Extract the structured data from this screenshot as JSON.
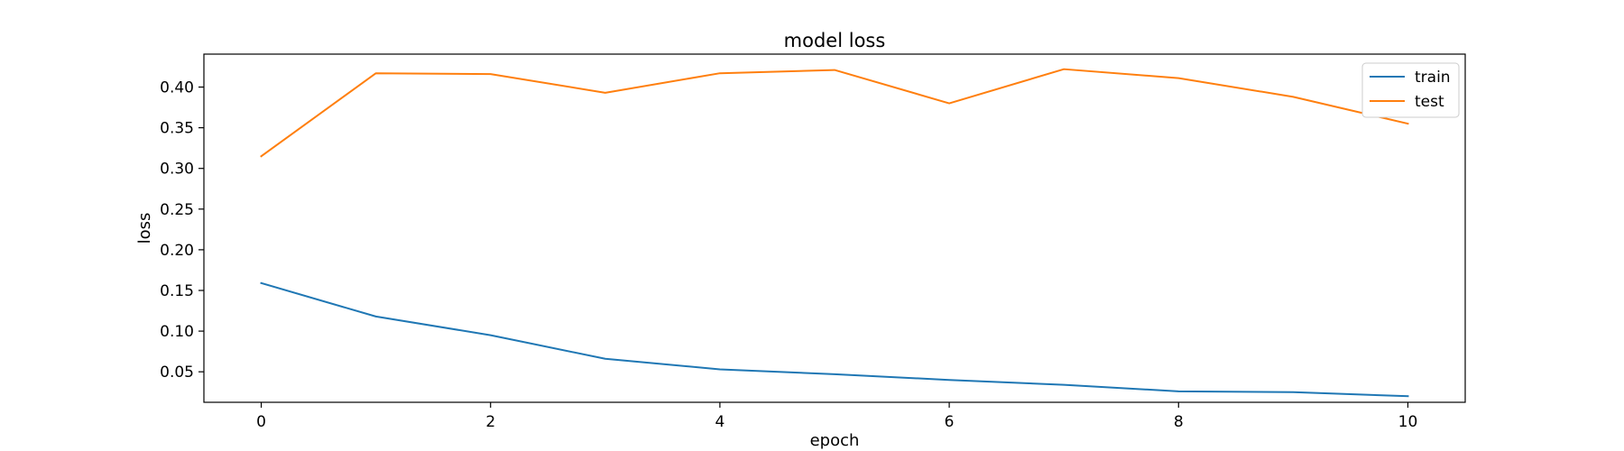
{
  "chart_data": {
    "type": "line",
    "title": "model loss",
    "xlabel": "epoch",
    "ylabel": "loss",
    "xlim": [
      -0.5,
      10.5
    ],
    "ylim": [
      0.0125,
      0.4405
    ],
    "x_ticks": [
      0,
      2,
      4,
      6,
      8,
      10
    ],
    "y_ticks": [
      0.05,
      0.1,
      0.15,
      0.2,
      0.25,
      0.3,
      0.35,
      0.4
    ],
    "x_tick_labels": [
      "0",
      "2",
      "4",
      "6",
      "8",
      "10"
    ],
    "y_tick_labels": [
      "0.05",
      "0.10",
      "0.15",
      "0.20",
      "0.25",
      "0.30",
      "0.35",
      "0.40"
    ],
    "x": [
      0,
      1,
      2,
      3,
      4,
      5,
      6,
      7,
      8,
      9,
      10
    ],
    "series": [
      {
        "name": "train",
        "color": "#1f77b4",
        "values": [
          0.159,
          0.118,
          0.095,
          0.066,
          0.053,
          0.047,
          0.04,
          0.034,
          0.026,
          0.025,
          0.02
        ]
      },
      {
        "name": "test",
        "color": "#ff7f0e",
        "values": [
          0.315,
          0.417,
          0.416,
          0.393,
          0.417,
          0.421,
          0.38,
          0.422,
          0.411,
          0.388,
          0.355
        ]
      }
    ],
    "grid": false,
    "legend_position": "top-right"
  }
}
